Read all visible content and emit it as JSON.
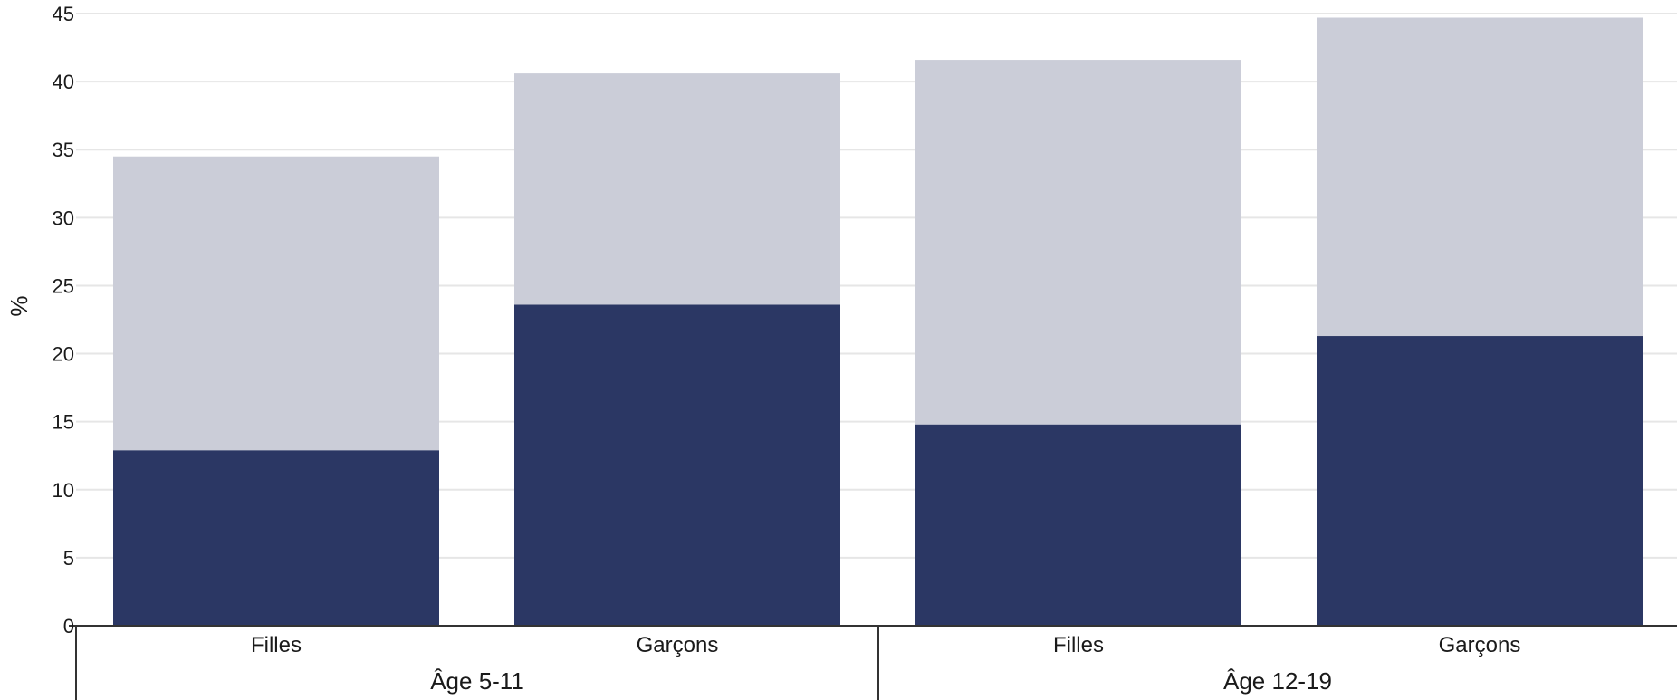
{
  "chart_data": {
    "type": "bar",
    "stacked": true,
    "ylabel": "%",
    "ylim": [
      0,
      45
    ],
    "y_ticks": [
      0,
      5,
      10,
      15,
      20,
      25,
      30,
      35,
      40,
      45
    ],
    "grid": true,
    "categories": [
      "Filles",
      "Garçons",
      "Filles",
      "Garçons"
    ],
    "groups": [
      {
        "label": "Âge 5-11",
        "categories": [
          "Filles",
          "Garçons"
        ]
      },
      {
        "label": "Âge 12-19",
        "categories": [
          "Filles",
          "Garçons"
        ]
      }
    ],
    "series": [
      {
        "values": [
          12.9,
          23.6,
          14.8,
          21.3
        ],
        "color": "#2b3764"
      },
      {
        "values": [
          21.6,
          17.0,
          26.8,
          23.4
        ],
        "color": "#cbcdd8"
      }
    ],
    "totals": [
      34.5,
      40.6,
      41.6,
      44.7
    ]
  }
}
